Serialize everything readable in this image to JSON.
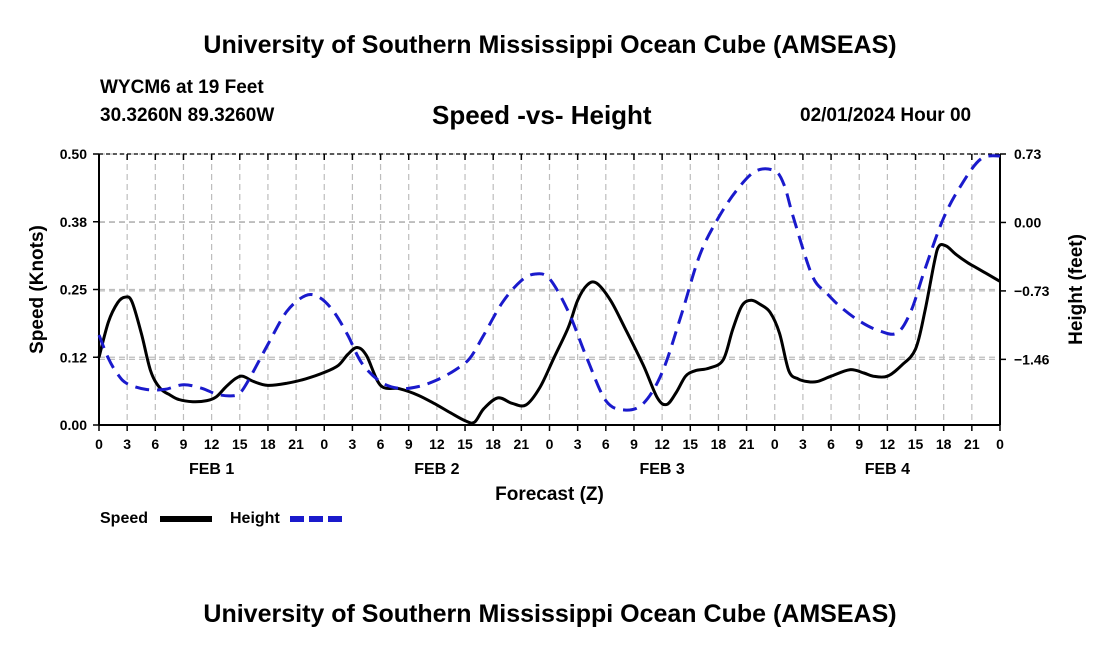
{
  "header": {
    "title": "University of Southern Mississippi Ocean Cube (AMSEAS)",
    "station": "WYCM6 at 19 Feet",
    "coords": "30.3260N  89.3260W",
    "chart_title": "Speed -vs- Height",
    "run": "02/01/2024 Hour 00"
  },
  "footer": {
    "title": "University of Southern Mississippi Ocean Cube (AMSEAS)"
  },
  "legend": {
    "speed_label": "Speed",
    "height_label": "Height"
  },
  "colors": {
    "speed": "#000000",
    "height": "#1a1acc",
    "grid": "#bdbdbd"
  },
  "chart_data": {
    "type": "line",
    "xlabel": "Forecast (Z)",
    "ylabel_left": "Speed (Knots)",
    "ylabel_right": "Height (feet)",
    "xlim": [
      0,
      96
    ],
    "ylim_left": [
      0,
      0.5
    ],
    "ylim_right": [
      -2.16,
      0.73
    ],
    "yticks_left": [
      {
        "value": 0,
        "label": "0.00"
      },
      {
        "value": 0.125,
        "label": "0.12"
      },
      {
        "value": 0.25,
        "label": "0.25"
      },
      {
        "value": 0.375,
        "label": "0.38"
      },
      {
        "value": 0.5,
        "label": "0.50"
      }
    ],
    "yticks_right": [
      {
        "value": 0.73,
        "label": "0.73"
      },
      {
        "value": 0.0,
        "label": "0.00"
      },
      {
        "value": -0.73,
        "label": "−0.73"
      },
      {
        "value": -1.46,
        "label": "−1.46"
      }
    ],
    "xticks": [
      "0",
      "3",
      "6",
      "9",
      "12",
      "15",
      "18",
      "21",
      "0",
      "3",
      "6",
      "9",
      "12",
      "15",
      "18",
      "21",
      "0",
      "3",
      "6",
      "9",
      "12",
      "15",
      "18",
      "21",
      "0",
      "3",
      "6",
      "9",
      "12",
      "15",
      "18",
      "21",
      "0"
    ],
    "day_labels": [
      {
        "hour": 12,
        "label": "FEB 1"
      },
      {
        "hour": 36,
        "label": "FEB 2"
      },
      {
        "hour": 60,
        "label": "FEB 3"
      },
      {
        "hour": 84,
        "label": "FEB 4"
      }
    ],
    "grid": true,
    "series": [
      {
        "name": "Speed",
        "axis": "left",
        "style": "solid",
        "x": [
          0,
          1,
          2,
          2.8,
          3.5,
          4.5,
          5.5,
          6.5,
          7.5,
          8.5,
          10,
          11.5,
          12.5,
          13.5,
          14.5,
          15.3,
          16.5,
          18,
          20,
          22,
          24,
          25.5,
          26.5,
          27.5,
          28.5,
          30,
          32,
          34,
          36,
          37.5,
          39,
          40,
          41,
          42.5,
          44,
          45.5,
          47,
          48.5,
          50,
          51,
          52,
          53,
          54.5,
          56,
          58,
          59.5,
          60.5,
          61.5,
          62.5,
          63.5,
          65,
          66.5,
          67.5,
          68.5,
          69.5,
          70.5,
          71.5,
          72.5,
          73.5,
          74.5,
          75.5,
          76.5,
          78,
          80,
          81.5,
          82.5,
          84,
          85.5,
          87,
          88,
          89,
          89.5,
          90.3,
          91.3,
          92.5,
          93.5,
          94.5,
          96
        ],
        "values": [
          0.125,
          0.19,
          0.226,
          0.236,
          0.228,
          0.17,
          0.1,
          0.068,
          0.056,
          0.047,
          0.043,
          0.045,
          0.052,
          0.07,
          0.085,
          0.09,
          0.08,
          0.073,
          0.077,
          0.085,
          0.097,
          0.11,
          0.13,
          0.143,
          0.128,
          0.073,
          0.067,
          0.055,
          0.037,
          0.022,
          0.008,
          0.005,
          0.03,
          0.05,
          0.04,
          0.037,
          0.07,
          0.125,
          0.18,
          0.23,
          0.258,
          0.262,
          0.23,
          0.18,
          0.11,
          0.05,
          0.038,
          0.06,
          0.09,
          0.1,
          0.105,
          0.12,
          0.175,
          0.22,
          0.23,
          0.222,
          0.208,
          0.17,
          0.1,
          0.085,
          0.08,
          0.08,
          0.09,
          0.102,
          0.096,
          0.09,
          0.09,
          0.11,
          0.14,
          0.21,
          0.3,
          0.33,
          0.33,
          0.315,
          0.3,
          0.29,
          0.28,
          0.265
        ]
      },
      {
        "name": "Height",
        "axis": "right",
        "style": "dashed",
        "x": [
          0,
          1,
          2,
          3,
          5,
          7,
          9,
          11,
          12.5,
          14,
          15,
          16,
          18,
          20,
          22,
          23.5,
          25,
          26.5,
          28,
          30,
          32,
          34,
          36,
          38,
          39.5,
          41,
          43,
          45,
          46.5,
          48,
          50,
          52,
          54,
          56,
          58,
          60,
          62,
          64,
          66,
          68,
          70,
          72,
          73,
          74,
          76,
          77.5,
          79,
          81,
          83,
          85,
          86.5,
          88,
          90,
          92,
          94,
          96
        ],
        "values": [
          -1.2,
          -1.45,
          -1.62,
          -1.72,
          -1.78,
          -1.78,
          -1.73,
          -1.77,
          -1.83,
          -1.85,
          -1.82,
          -1.67,
          -1.3,
          -0.95,
          -0.78,
          -0.8,
          -0.95,
          -1.2,
          -1.5,
          -1.7,
          -1.77,
          -1.75,
          -1.68,
          -1.57,
          -1.45,
          -1.2,
          -0.85,
          -0.62,
          -0.55,
          -0.6,
          -0.95,
          -1.45,
          -1.9,
          -2.0,
          -1.93,
          -1.6,
          -1.0,
          -0.35,
          0.05,
          0.35,
          0.55,
          0.55,
          0.4,
          0.05,
          -0.57,
          -0.75,
          -0.9,
          -1.05,
          -1.15,
          -1.18,
          -0.95,
          -0.5,
          0.05,
          0.42,
          0.68,
          0.71
        ]
      }
    ]
  }
}
